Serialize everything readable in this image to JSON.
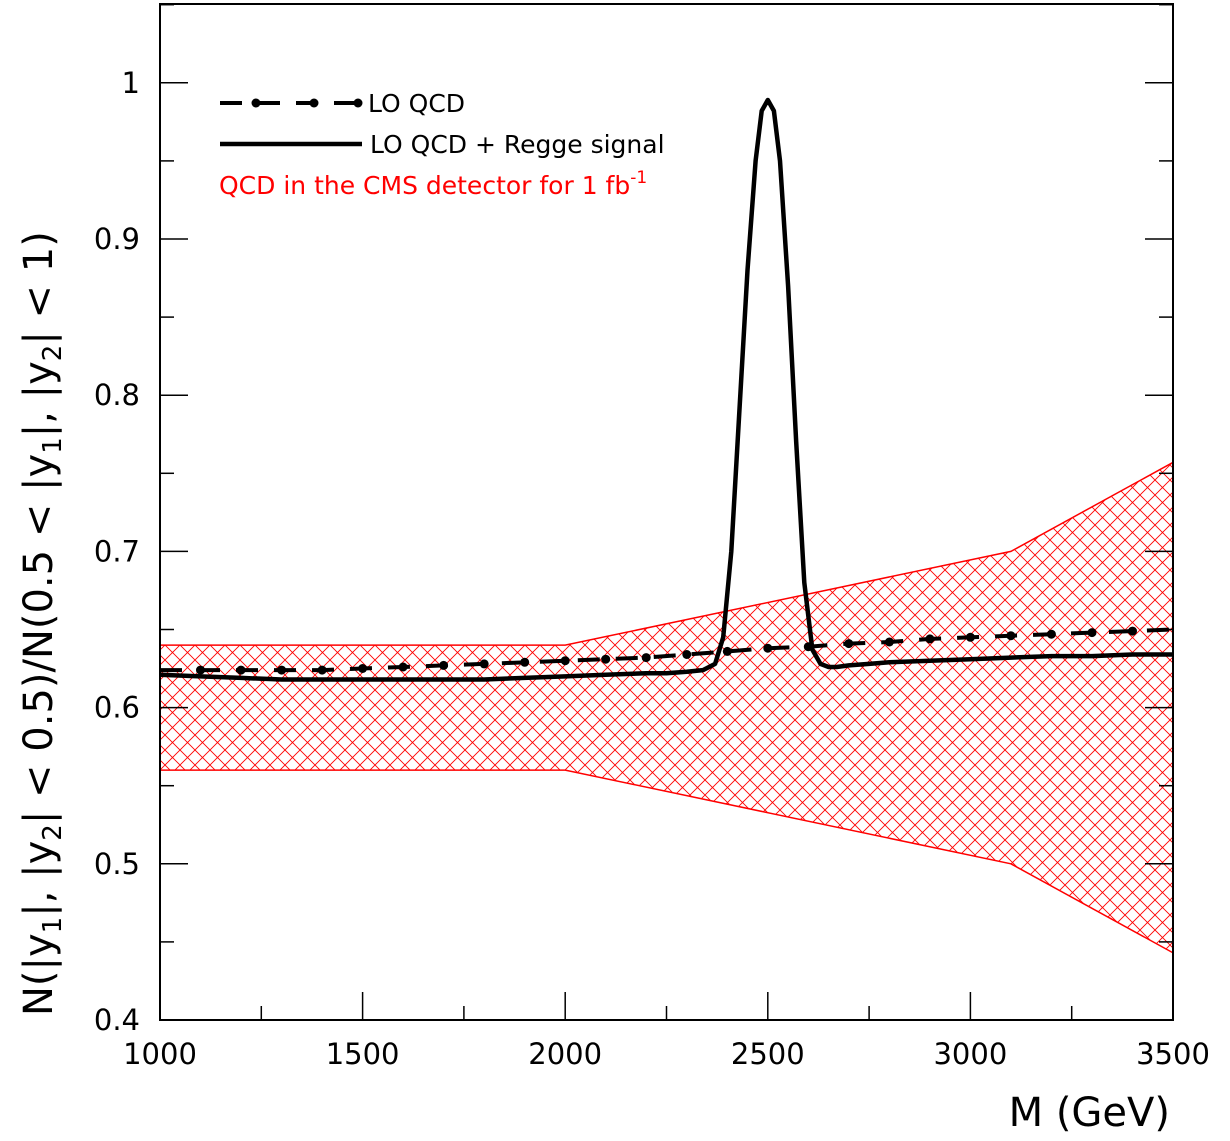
{
  "chart_data": {
    "type": "line",
    "xlabel": "M (GeV)",
    "ylabel": {
      "p1": "N(|y",
      "s1": "1",
      "p2": "|, |y",
      "s2": "2",
      "p3": "| < 0.5)/N(0.5 < |y",
      "s3": "1",
      "p4": "|, |y",
      "s4": "2",
      "p5": "| < 1)"
    },
    "xlim": [
      1000,
      3500
    ],
    "ylim": [
      0.4,
      1.05
    ],
    "x_ticks": [
      1000,
      1500,
      2000,
      2500,
      3000,
      3500
    ],
    "x_tick_labels": [
      "1000",
      "1500",
      "2000",
      "2500",
      "3000",
      "3500"
    ],
    "y_ticks": [
      0.4,
      0.5,
      0.6,
      0.7,
      0.8,
      0.9,
      1.0
    ],
    "y_tick_labels": [
      "0.4",
      "0.5",
      "0.6",
      "0.7",
      "0.8",
      "0.9",
      "1"
    ],
    "legend_placement": "top-left",
    "series": [
      {
        "name": "LO QCD",
        "style": "dash-dot",
        "color": "#000000",
        "x": [
          1000,
          1100,
          1200,
          1300,
          1400,
          1500,
          1600,
          1700,
          1800,
          1900,
          2000,
          2100,
          2200,
          2300,
          2400,
          2500,
          2600,
          2700,
          2800,
          2900,
          3000,
          3100,
          3200,
          3300,
          3400,
          3500
        ],
        "y": [
          0.624,
          0.624,
          0.624,
          0.624,
          0.624,
          0.625,
          0.626,
          0.627,
          0.628,
          0.629,
          0.63,
          0.631,
          0.632,
          0.634,
          0.636,
          0.638,
          0.639,
          0.641,
          0.642,
          0.644,
          0.645,
          0.646,
          0.647,
          0.648,
          0.649,
          0.65
        ]
      },
      {
        "name": "LO QCD + Regge signal",
        "style": "solid",
        "color": "#000000",
        "x": [
          1000,
          1100,
          1200,
          1300,
          1400,
          1500,
          1600,
          1700,
          1800,
          1900,
          2000,
          2100,
          2200,
          2250,
          2300,
          2340,
          2370,
          2390,
          2410,
          2430,
          2450,
          2470,
          2485,
          2500,
          2515,
          2530,
          2550,
          2570,
          2590,
          2610,
          2630,
          2650,
          2670,
          2700,
          2750,
          2800,
          2900,
          3000,
          3100,
          3200,
          3300,
          3400,
          3500
        ],
        "y": [
          0.621,
          0.62,
          0.619,
          0.618,
          0.618,
          0.618,
          0.618,
          0.618,
          0.618,
          0.619,
          0.62,
          0.621,
          0.622,
          0.622,
          0.623,
          0.624,
          0.628,
          0.645,
          0.7,
          0.79,
          0.88,
          0.95,
          0.982,
          0.989,
          0.982,
          0.95,
          0.87,
          0.77,
          0.68,
          0.637,
          0.628,
          0.626,
          0.626,
          0.627,
          0.628,
          0.629,
          0.63,
          0.631,
          0.632,
          0.633,
          0.633,
          0.634,
          0.634
        ]
      }
    ],
    "band": {
      "name": "QCD in the CMS detector for 1 fb",
      "name_sup": "-1",
      "color": "#ff0000",
      "x": [
        1000,
        2000,
        3100,
        3500
      ],
      "upper": [
        0.64,
        0.64,
        0.7,
        0.757
      ],
      "lower": [
        0.56,
        0.56,
        0.5,
        0.443
      ]
    }
  }
}
